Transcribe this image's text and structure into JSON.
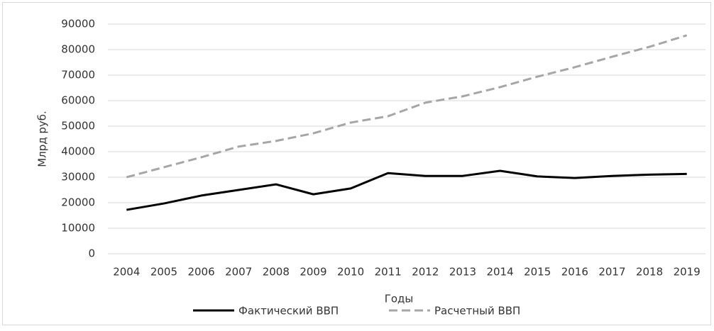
{
  "chart_data": {
    "type": "line",
    "x_label": "Годы",
    "y_label": "Млрд руб.",
    "categories": [
      "2004",
      "2005",
      "2006",
      "2007",
      "2008",
      "2009",
      "2010",
      "2011",
      "2012",
      "2013",
      "2014",
      "2015",
      "2016",
      "2017",
      "2018",
      "2019"
    ],
    "series": [
      {
        "name": "Фактический ВВП",
        "color": "#000000",
        "dash": false,
        "values": [
          17200,
          19700,
          22800,
          25000,
          27200,
          23300,
          25600,
          31600,
          30500,
          30500,
          32500,
          30300,
          29700,
          30500,
          31000,
          31300
        ]
      },
      {
        "name": "Расчетный ВВП",
        "color": "#a6a6a6",
        "dash": true,
        "values": [
          30000,
          33900,
          37800,
          42000,
          44200,
          47200,
          51400,
          53900,
          59200,
          61700,
          65300,
          69400,
          73100,
          77200,
          81100,
          85600
        ]
      }
    ],
    "ylim": [
      0,
      90000
    ],
    "yticks": [
      0,
      10000,
      20000,
      30000,
      40000,
      50000,
      60000,
      70000,
      80000,
      90000
    ],
    "grid": true,
    "legend": "bottom"
  }
}
